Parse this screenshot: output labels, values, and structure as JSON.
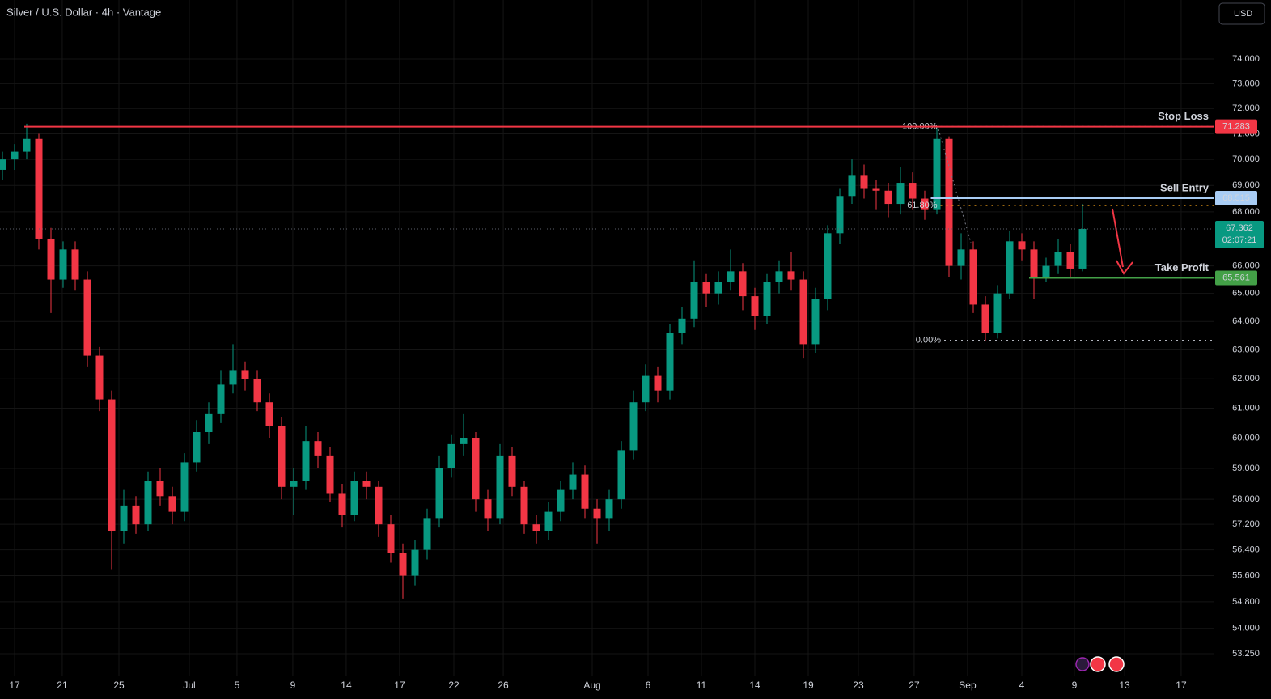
{
  "chart_data": {
    "type": "candlestick",
    "title": "Silver / U.S. Dollar · 4h · Vantage",
    "currency": "USD",
    "log": true,
    "grid": true,
    "up_color": "#089981",
    "down_color": "#f23645",
    "xlim": [
      -0.2,
      99.8
    ],
    "ylim": [
      52.61,
      76.46
    ],
    "xticks": [
      {
        "value": 1.0,
        "label": "17"
      },
      {
        "value": 4.93,
        "label": "21"
      },
      {
        "value": 9.6,
        "label": "25"
      },
      {
        "value": 15.4,
        "label": "Jul"
      },
      {
        "value": 19.33,
        "label": "5"
      },
      {
        "value": 23.93,
        "label": "9"
      },
      {
        "value": 28.33,
        "label": "14"
      },
      {
        "value": 32.73,
        "label": "17"
      },
      {
        "value": 37.2,
        "label": "22"
      },
      {
        "value": 41.27,
        "label": "26"
      },
      {
        "value": 48.6,
        "label": "Aug"
      },
      {
        "value": 53.2,
        "label": "6"
      },
      {
        "value": 57.6,
        "label": "11"
      },
      {
        "value": 62.0,
        "label": "14"
      },
      {
        "value": 66.4,
        "label": "19"
      },
      {
        "value": 70.53,
        "label": "23"
      },
      {
        "value": 75.13,
        "label": "27"
      },
      {
        "value": 79.53,
        "label": "Sep"
      },
      {
        "value": 84.0,
        "label": "4"
      },
      {
        "value": 88.33,
        "label": "9"
      },
      {
        "value": 92.47,
        "label": "13"
      },
      {
        "value": 97.13,
        "label": "17"
      }
    ],
    "yticks": [
      {
        "value": 74,
        "label": "74.000"
      },
      {
        "value": 73,
        "label": "73.000"
      },
      {
        "value": 72,
        "label": "72.000"
      },
      {
        "value": 71,
        "label": "71.000"
      },
      {
        "value": 70,
        "label": "70.000"
      },
      {
        "value": 69,
        "label": "69.000"
      },
      {
        "value": 68,
        "label": "68.000"
      },
      {
        "value": 66,
        "label": "66.000"
      },
      {
        "value": 65,
        "label": "65.000"
      },
      {
        "value": 64,
        "label": "64.000"
      },
      {
        "value": 63,
        "label": "63.000"
      },
      {
        "value": 62,
        "label": "62.000"
      },
      {
        "value": 61,
        "label": "61.000"
      },
      {
        "value": 60,
        "label": "60.000"
      },
      {
        "value": 59,
        "label": "59.000"
      },
      {
        "value": 58,
        "label": "58.000"
      },
      {
        "value": 57.2,
        "label": "57.200"
      },
      {
        "value": 56.4,
        "label": "56.400"
      },
      {
        "value": 55.6,
        "label": "55.600"
      },
      {
        "value": 54.8,
        "label": "54.800"
      },
      {
        "value": 54,
        "label": "54.000"
      },
      {
        "value": 53.25,
        "label": "53.250"
      }
    ],
    "open": [
      69.6,
      70.0,
      70.3,
      70.8,
      67.0,
      65.5,
      66.6,
      65.5,
      62.8,
      61.3,
      57.0,
      57.8,
      57.2,
      58.6,
      58.1,
      57.6,
      59.2,
      60.2,
      60.8,
      61.8,
      62.3,
      62.0,
      61.2,
      60.4,
      58.4,
      58.6,
      59.9,
      59.4,
      58.2,
      57.5,
      58.6,
      58.4,
      57.2,
      56.3,
      55.6,
      56.4,
      57.4,
      59.0,
      59.8,
      60.0,
      58.0,
      57.4,
      59.4,
      58.4,
      57.2,
      57.0,
      57.6,
      58.3,
      58.8,
      57.7,
      57.4,
      58.0,
      59.6,
      61.2,
      62.1,
      61.6,
      63.6,
      64.1,
      65.4,
      65.0,
      65.4,
      65.8,
      64.9,
      64.2,
      65.4,
      65.8,
      65.5,
      63.2,
      64.8,
      67.2,
      68.6,
      69.4,
      68.9,
      68.8,
      68.3,
      69.1,
      68.5,
      68.1,
      70.8,
      66.0,
      66.6,
      64.6,
      63.6,
      65.0,
      66.9,
      66.6,
      65.6,
      66.0,
      66.5,
      65.9
    ],
    "high": [
      70.3,
      70.6,
      71.4,
      71.0,
      67.4,
      66.9,
      66.9,
      65.8,
      63.1,
      61.6,
      58.3,
      58.1,
      58.9,
      59.0,
      58.4,
      59.5,
      60.6,
      61.2,
      62.3,
      63.2,
      62.6,
      62.3,
      61.5,
      60.7,
      59.0,
      60.4,
      60.2,
      59.7,
      58.5,
      58.9,
      58.9,
      58.6,
      57.5,
      56.6,
      56.7,
      57.7,
      59.4,
      60.1,
      60.8,
      60.2,
      58.3,
      59.8,
      59.7,
      58.6,
      57.5,
      57.9,
      58.6,
      59.2,
      59.1,
      58.0,
      58.3,
      59.9,
      61.6,
      62.5,
      62.4,
      63.9,
      64.5,
      66.2,
      65.7,
      65.8,
      66.6,
      66.1,
      65.2,
      65.7,
      66.2,
      66.5,
      65.8,
      65.2,
      67.5,
      68.9,
      70.0,
      69.8,
      69.2,
      69.1,
      69.7,
      69.5,
      68.8,
      71.28,
      70.9,
      67.2,
      66.9,
      64.9,
      65.3,
      67.3,
      67.2,
      66.9,
      66.3,
      67.0,
      66.8,
      68.3
    ],
    "low": [
      69.2,
      69.6,
      70.0,
      66.6,
      64.3,
      65.2,
      65.1,
      62.4,
      60.9,
      55.8,
      56.6,
      56.9,
      57.0,
      57.8,
      57.2,
      57.3,
      58.9,
      59.8,
      60.5,
      61.5,
      61.6,
      60.9,
      60.0,
      58.0,
      57.5,
      58.3,
      59.0,
      57.9,
      57.1,
      57.3,
      58.0,
      56.8,
      56.0,
      54.9,
      55.3,
      56.1,
      57.1,
      58.7,
      59.4,
      57.6,
      57.0,
      57.2,
      58.1,
      56.9,
      56.6,
      56.7,
      57.3,
      58.0,
      57.4,
      56.6,
      57.0,
      57.7,
      59.3,
      60.9,
      61.2,
      61.3,
      63.2,
      63.8,
      64.5,
      64.6,
      65.1,
      64.4,
      63.7,
      63.9,
      65.0,
      65.1,
      62.7,
      62.9,
      64.4,
      66.8,
      68.3,
      68.5,
      68.1,
      67.8,
      67.9,
      68.1,
      67.7,
      67.9,
      65.6,
      65.5,
      64.3,
      63.3,
      63.4,
      64.8,
      66.2,
      64.8,
      65.4,
      65.7,
      65.6,
      65.8
    ],
    "close": [
      70.0,
      70.3,
      70.8,
      67.0,
      65.5,
      66.6,
      65.5,
      62.8,
      61.3,
      57.0,
      57.8,
      57.2,
      58.6,
      58.1,
      57.6,
      59.2,
      60.2,
      60.8,
      61.8,
      62.3,
      62.0,
      61.2,
      60.4,
      58.4,
      58.6,
      59.9,
      59.4,
      58.2,
      57.5,
      58.6,
      58.4,
      57.2,
      56.3,
      55.6,
      56.4,
      57.4,
      59.0,
      59.8,
      60.0,
      58.0,
      57.4,
      59.4,
      58.4,
      57.2,
      57.0,
      57.6,
      58.3,
      58.8,
      57.7,
      57.4,
      58.0,
      59.6,
      61.2,
      62.1,
      61.6,
      63.6,
      64.1,
      65.4,
      65.0,
      65.4,
      65.8,
      64.9,
      64.2,
      65.4,
      65.8,
      65.5,
      63.2,
      64.8,
      67.2,
      68.6,
      69.4,
      68.9,
      68.8,
      68.3,
      69.1,
      68.5,
      68.1,
      70.8,
      66.0,
      66.6,
      64.6,
      63.6,
      65.0,
      66.9,
      66.6,
      65.6,
      66.0,
      66.5,
      65.9,
      67.362
    ],
    "levels": [
      {
        "name": "Stop Loss",
        "value": 71.283,
        "start_x": 1.8,
        "color": "#f23645",
        "text_color": "#ffffff"
      },
      {
        "name": "Sell Entry",
        "value": 68.515,
        "start_x": 76.5,
        "color": "#a9cdf5",
        "text_color": "#131722"
      },
      {
        "name": "Take Profit",
        "value": 65.561,
        "start_x": 84.6,
        "color": "#43a047",
        "text_color": "#ffffff"
      }
    ],
    "fib": [
      {
        "value": 71.283,
        "label": "100.00%",
        "start_x": 77.3,
        "color": "#b2b5be"
      },
      {
        "value": 68.245,
        "label": "61.80%",
        "start_x": 77.3,
        "color": "#f7a21b"
      },
      {
        "value": 63.33,
        "label": "0.00%",
        "start_x": 77.6,
        "color": "#b2b5be"
      }
    ],
    "last_price": 67.362,
    "countdown": "02:07:21"
  }
}
